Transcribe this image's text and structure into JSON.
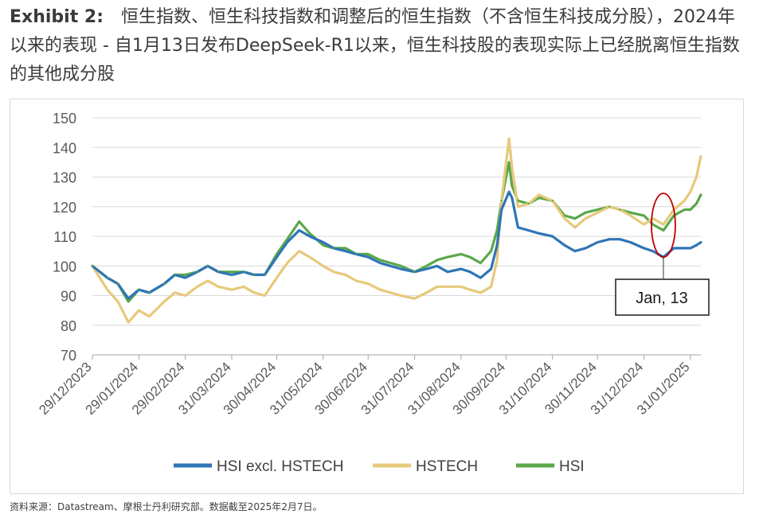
{
  "title": {
    "exhibit": "Exhibit 2:",
    "text": "恒生指数、恒生科技指数和调整后的恒生指数（不含恒生科技成分股），2024年以来的表现 - 自1月13日发布DeepSeek-R1以来，恒生科技股的表现实际上已经脱离恒生指数的其他成分股"
  },
  "footnote": "资料来源：Datastream、摩根士丹利研究部。数据截至2025年2月7日。",
  "chart_data": {
    "type": "line",
    "title": "",
    "xlabel": "",
    "ylabel": "",
    "ylim": [
      70,
      150
    ],
    "yticks": [
      70,
      80,
      90,
      100,
      110,
      120,
      130,
      140,
      150
    ],
    "xlim": [
      "2023-12-29",
      "2025-02-07"
    ],
    "xticks": [
      "29/12/2023",
      "29/01/2024",
      "29/02/2024",
      "31/03/2024",
      "30/04/2024",
      "31/05/2024",
      "30/06/2024",
      "31/07/2024",
      "31/08/2024",
      "30/09/2024",
      "31/10/2024",
      "30/11/2024",
      "31/12/2024",
      "31/01/2025"
    ],
    "grid": true,
    "legend": "bottom",
    "annotation": {
      "label": "Jan, 13",
      "x": "2025-01-13",
      "shape": "ellipse",
      "color": "#c00000"
    },
    "x": [
      "2023-12-29",
      "2024-01-08",
      "2024-01-15",
      "2024-01-22",
      "2024-01-29",
      "2024-02-05",
      "2024-02-15",
      "2024-02-22",
      "2024-02-29",
      "2024-03-08",
      "2024-03-15",
      "2024-03-22",
      "2024-03-31",
      "2024-04-08",
      "2024-04-15",
      "2024-04-22",
      "2024-04-30",
      "2024-05-07",
      "2024-05-15",
      "2024-05-22",
      "2024-05-31",
      "2024-06-07",
      "2024-06-15",
      "2024-06-22",
      "2024-06-30",
      "2024-07-08",
      "2024-07-15",
      "2024-07-22",
      "2024-07-31",
      "2024-08-08",
      "2024-08-15",
      "2024-08-22",
      "2024-08-31",
      "2024-09-06",
      "2024-09-13",
      "2024-09-20",
      "2024-09-24",
      "2024-09-27",
      "2024-10-02",
      "2024-10-04",
      "2024-10-08",
      "2024-10-15",
      "2024-10-22",
      "2024-10-31",
      "2024-11-08",
      "2024-11-15",
      "2024-11-22",
      "2024-11-30",
      "2024-12-08",
      "2024-12-15",
      "2024-12-22",
      "2024-12-31",
      "2025-01-06",
      "2025-01-13",
      "2025-01-20",
      "2025-01-27",
      "2025-01-31",
      "2025-02-04",
      "2025-02-07"
    ],
    "series": [
      {
        "name": "HSI excl. HSTECH",
        "color": "#2e75b6",
        "values": [
          100,
          96,
          94,
          89,
          92,
          91,
          94,
          97,
          96,
          98,
          100,
          98,
          97,
          98,
          97,
          97,
          103,
          108,
          112,
          110,
          108,
          106,
          105,
          104,
          103,
          101,
          100,
          99,
          98,
          99,
          100,
          98,
          99,
          98,
          96,
          99,
          107,
          119,
          125,
          123,
          113,
          112,
          111,
          110,
          107,
          105,
          106,
          108,
          109,
          109,
          108,
          106,
          105,
          103,
          106,
          106,
          106,
          107,
          108
        ]
      },
      {
        "name": "HSTECH",
        "color": "#e6c97a",
        "values": [
          100,
          92,
          88,
          81,
          85,
          83,
          88,
          91,
          90,
          93,
          95,
          93,
          92,
          93,
          91,
          90,
          96,
          101,
          105,
          103,
          100,
          98,
          97,
          95,
          94,
          92,
          91,
          90,
          89,
          91,
          93,
          93,
          93,
          92,
          91,
          93,
          102,
          122,
          143,
          133,
          120,
          121,
          124,
          122,
          116,
          113,
          116,
          118,
          120,
          119,
          117,
          114,
          116,
          114,
          119,
          122,
          125,
          130,
          137
        ]
      },
      {
        "name": "HSI",
        "color": "#5aa84a",
        "values": [
          100,
          96,
          94,
          88,
          92,
          91,
          94,
          97,
          97,
          98,
          100,
          98,
          98,
          98,
          97,
          97,
          104,
          109,
          115,
          111,
          107,
          106,
          106,
          104,
          104,
          102,
          101,
          100,
          98,
          100,
          102,
          103,
          104,
          103,
          101,
          105,
          112,
          122,
          135,
          127,
          122,
          121,
          123,
          122,
          117,
          116,
          118,
          119,
          120,
          119,
          118,
          117,
          114,
          112,
          117,
          119,
          119,
          121,
          124
        ]
      }
    ]
  }
}
